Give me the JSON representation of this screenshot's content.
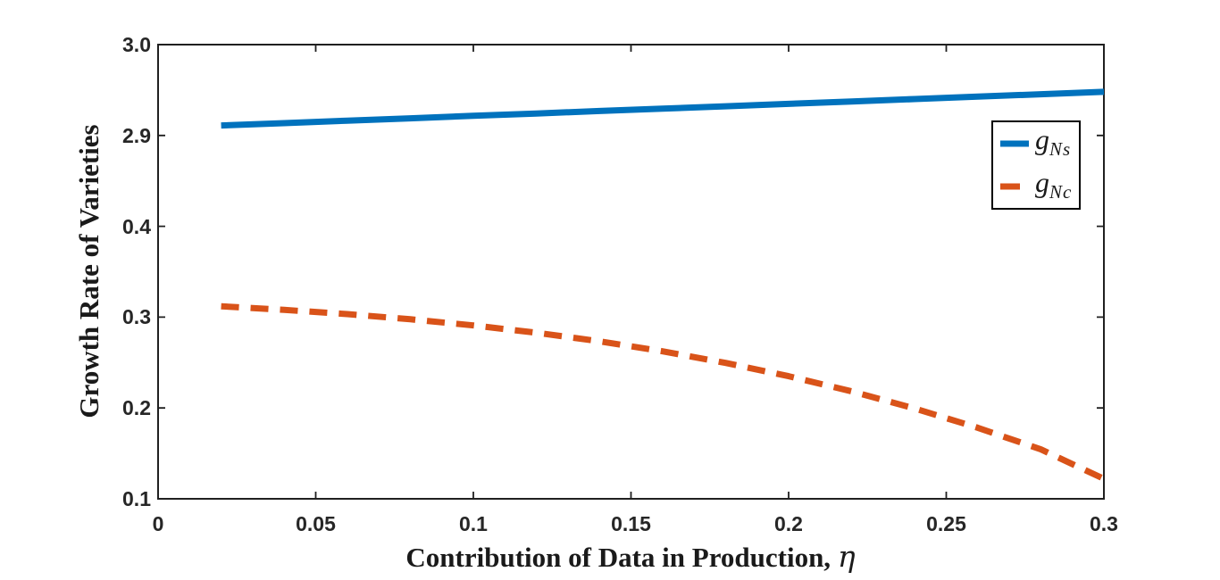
{
  "chart": {
    "y_title": "Growth Rate of Varieties",
    "x_title_text": "Contribution of Data in Production, ",
    "x_title_symbol": "η",
    "x_tick_labels": [
      "0",
      "0.05",
      "0.1",
      "0.15",
      "0.2",
      "0.25",
      "0.3"
    ],
    "y_tick_labels": [
      "3.0",
      "2.9",
      "0.4",
      "0.3",
      "0.2",
      "0.1"
    ],
    "legend": [
      {
        "base": "g",
        "sub": "Ns",
        "color": "#0072BD",
        "style": "solid"
      },
      {
        "base": "g",
        "sub": "Nc",
        "color": "#D95319",
        "style": "dashed"
      }
    ],
    "axis_color": "#202020"
  },
  "chart_data": {
    "type": "line",
    "title": "",
    "xlabel": "Contribution of Data in Production, η",
    "ylabel": "Growth Rate of Varieties",
    "xlim": [
      0,
      0.3
    ],
    "x_ticks": [
      0,
      0.05,
      0.1,
      0.15,
      0.2,
      0.25,
      0.3
    ],
    "y_tick_labels_top_to_bottom": [
      "3.0",
      "2.9",
      "0.4",
      "0.3",
      "0.2",
      "0.1"
    ],
    "axis_note": "broken y-axis with evenly spaced ticks: upper segment 2.9-3.0, lower segment 0.1-0.4",
    "grid": false,
    "legend_position": "upper right inside",
    "x": [
      0.02,
      0.04,
      0.06,
      0.08,
      0.1,
      0.12,
      0.14,
      0.16,
      0.18,
      0.2,
      0.22,
      0.24,
      0.26,
      0.28,
      0.3
    ],
    "series": [
      {
        "name": "g_Ns",
        "color": "#0072BD",
        "line_style": "solid",
        "values": [
          2.911,
          2.9136,
          2.9163,
          2.9189,
          2.9216,
          2.9242,
          2.9269,
          2.9295,
          2.9321,
          2.9348,
          2.9374,
          2.9401,
          2.9427,
          2.9454,
          2.948
        ]
      },
      {
        "name": "g_Nc",
        "color": "#D95319",
        "line_style": "dashed",
        "values": [
          0.312,
          0.308,
          0.3033,
          0.2976,
          0.2909,
          0.2828,
          0.2734,
          0.2624,
          0.2496,
          0.235,
          0.2183,
          0.1994,
          0.1782,
          0.1544,
          0.122
        ]
      }
    ]
  }
}
